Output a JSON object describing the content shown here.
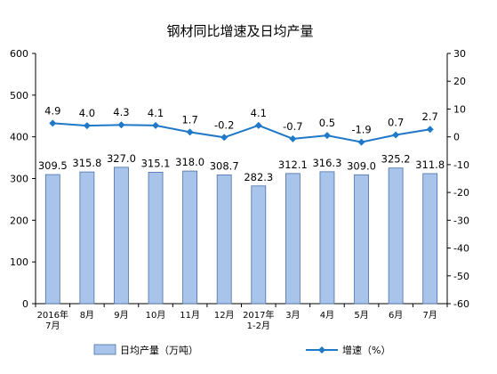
{
  "chart_data": {
    "type": "bar",
    "title": "钢材同比增速及日均产量",
    "categories": [
      "2016年\n7月",
      "8月",
      "9月",
      "10月",
      "11月",
      "12月",
      "2017年\n1-2月",
      "3月",
      "4月",
      "5月",
      "6月",
      "7月"
    ],
    "series": [
      {
        "name": "日均产量（万吨）",
        "kind": "bar",
        "axis": "left",
        "color": "#a9c4ea",
        "stroke": "#4a6fa5",
        "values": [
          309.5,
          315.8,
          327.0,
          315.1,
          318.0,
          308.7,
          282.3,
          312.1,
          316.3,
          309.0,
          325.2,
          311.8
        ],
        "labels": [
          "309.5",
          "315.8",
          "327.0",
          "315.1",
          "318.0",
          "308.7",
          "282.3",
          "312.1",
          "316.3",
          "309.0",
          "325.2",
          "311.8"
        ]
      },
      {
        "name": "增速（%）",
        "kind": "line",
        "axis": "right",
        "color": "#1f78c8",
        "values": [
          4.9,
          4.0,
          4.3,
          4.1,
          1.7,
          -0.2,
          4.1,
          -0.7,
          0.5,
          -1.9,
          0.7,
          2.7
        ],
        "labels": [
          "4.9",
          "4.0",
          "4.3",
          "4.1",
          "1.7",
          "-0.2",
          "4.1",
          "-0.7",
          "0.5",
          "-1.9",
          "0.7",
          "2.7"
        ]
      }
    ],
    "y_left": {
      "min": 0,
      "max": 600,
      "ticks": [
        "0",
        "100",
        "200",
        "300",
        "400",
        "500",
        "600"
      ]
    },
    "y_right": {
      "min": -60,
      "max": 30,
      "ticks": [
        "-60",
        "-50",
        "-40",
        "-30",
        "-20",
        "-10",
        "0",
        "10",
        "20",
        "30"
      ]
    },
    "grid": false,
    "legend_position": "bottom"
  }
}
